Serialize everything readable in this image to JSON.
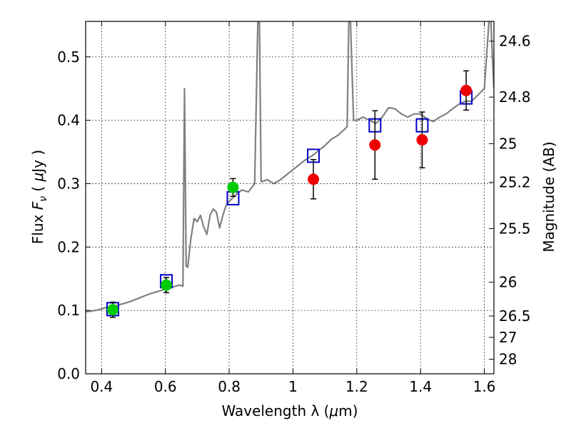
{
  "chart_data": {
    "type": "line",
    "x_axis": {
      "label_text": "Wavelength  λ (",
      "label_unit_sym": "μ",
      "label_unit": "m)",
      "range": [
        0.35,
        1.63
      ],
      "ticks": [
        0.4,
        0.6,
        0.8,
        1.0,
        1.2,
        1.4,
        1.6
      ],
      "tick_labels": [
        "0.4",
        "0.6",
        "0.8",
        "1",
        "1.2",
        "1.4",
        "1.6"
      ]
    },
    "y_axis": {
      "label_prefix": "Flux  ",
      "label_symbol": "F",
      "label_subscript": "ν",
      "label_unit_open": "  ( ",
      "label_unit_sym": "μ",
      "label_unit": "Jy )",
      "range": [
        0.0,
        0.556
      ],
      "ticks": [
        0.0,
        0.1,
        0.2,
        0.3,
        0.4,
        0.5
      ],
      "tick_labels": [
        "0.0",
        "0.1",
        "0.2",
        "0.3",
        "0.4",
        "0.5"
      ]
    },
    "y2_axis": {
      "label": "Magnitude (AB)",
      "ticks": [
        {
          "mag": 24.6,
          "label": "24.6"
        },
        {
          "mag": 24.8,
          "label": "24.8"
        },
        {
          "mag": 25.0,
          "label": "25"
        },
        {
          "mag": 25.2,
          "label": "25.2"
        },
        {
          "mag": 25.5,
          "label": "25.5"
        },
        {
          "mag": 26.0,
          "label": "26"
        },
        {
          "mag": 26.5,
          "label": "26.5"
        },
        {
          "mag": 27.0,
          "label": "27"
        },
        {
          "mag": 28.0,
          "label": "28"
        }
      ]
    },
    "grid": true,
    "series": [
      {
        "style": "line",
        "color": "#808080",
        "points": [
          [
            0.35,
            0.098
          ],
          [
            0.37,
            0.099
          ],
          [
            0.39,
            0.101
          ],
          [
            0.41,
            0.104
          ],
          [
            0.43,
            0.106
          ],
          [
            0.45,
            0.108
          ],
          [
            0.47,
            0.111
          ],
          [
            0.49,
            0.114
          ],
          [
            0.51,
            0.118
          ],
          [
            0.53,
            0.122
          ],
          [
            0.55,
            0.126
          ],
          [
            0.57,
            0.129
          ],
          [
            0.59,
            0.132
          ],
          [
            0.61,
            0.135
          ],
          [
            0.63,
            0.138
          ],
          [
            0.645,
            0.14
          ],
          [
            0.655,
            0.138
          ],
          [
            0.66,
            0.45
          ],
          [
            0.665,
            0.17
          ],
          [
            0.67,
            0.168
          ],
          [
            0.68,
            0.214
          ],
          [
            0.69,
            0.245
          ],
          [
            0.7,
            0.24
          ],
          [
            0.71,
            0.25
          ],
          [
            0.72,
            0.232
          ],
          [
            0.73,
            0.22
          ],
          [
            0.74,
            0.25
          ],
          [
            0.75,
            0.26
          ],
          [
            0.76,
            0.255
          ],
          [
            0.77,
            0.23
          ],
          [
            0.78,
            0.25
          ],
          [
            0.79,
            0.265
          ],
          [
            0.8,
            0.272
          ],
          [
            0.82,
            0.282
          ],
          [
            0.84,
            0.29
          ],
          [
            0.86,
            0.287
          ],
          [
            0.88,
            0.3
          ],
          [
            0.89,
            0.56
          ],
          [
            0.895,
            0.556
          ],
          [
            0.9,
            0.303
          ],
          [
            0.92,
            0.306
          ],
          [
            0.94,
            0.3
          ],
          [
            0.96,
            0.306
          ],
          [
            0.98,
            0.314
          ],
          [
            1.0,
            0.322
          ],
          [
            1.02,
            0.33
          ],
          [
            1.04,
            0.338
          ],
          [
            1.06,
            0.344
          ],
          [
            1.08,
            0.352
          ],
          [
            1.1,
            0.36
          ],
          [
            1.12,
            0.37
          ],
          [
            1.14,
            0.376
          ],
          [
            1.16,
            0.385
          ],
          [
            1.17,
            0.39
          ],
          [
            1.175,
            0.56
          ],
          [
            1.18,
            0.56
          ],
          [
            1.19,
            0.4
          ],
          [
            1.2,
            0.4
          ],
          [
            1.22,
            0.405
          ],
          [
            1.24,
            0.4
          ],
          [
            1.26,
            0.395
          ],
          [
            1.28,
            0.405
          ],
          [
            1.3,
            0.42
          ],
          [
            1.32,
            0.418
          ],
          [
            1.34,
            0.41
          ],
          [
            1.36,
            0.405
          ],
          [
            1.38,
            0.41
          ],
          [
            1.4,
            0.41
          ],
          [
            1.42,
            0.402
          ],
          [
            1.44,
            0.398
          ],
          [
            1.46,
            0.405
          ],
          [
            1.48,
            0.41
          ],
          [
            1.5,
            0.418
          ],
          [
            1.52,
            0.425
          ],
          [
            1.54,
            0.43
          ],
          [
            1.56,
            0.43
          ],
          [
            1.58,
            0.44
          ],
          [
            1.6,
            0.45
          ],
          [
            1.615,
            0.56
          ],
          [
            1.62,
            0.56
          ],
          [
            1.63,
            0.45
          ]
        ]
      },
      {
        "style": "open-square",
        "color": "#0000cc",
        "x": [
          0.435,
          0.603,
          0.812,
          1.064,
          1.257,
          1.405,
          1.543
        ],
        "y": [
          0.102,
          0.146,
          0.277,
          0.344,
          0.392,
          0.392,
          0.436
        ]
      },
      {
        "style": "filled-circle-errorbar",
        "color": "#00cc00",
        "x": [
          0.435,
          0.603,
          0.812
        ],
        "y": [
          0.101,
          0.14,
          0.294
        ],
        "yerr": [
          0.012,
          0.012,
          0.014
        ]
      },
      {
        "style": "filled-circle-errorbar",
        "color": "#ee0000",
        "x": [
          1.064,
          1.257,
          1.405,
          1.543
        ],
        "y": [
          0.307,
          0.361,
          0.369,
          0.447
        ],
        "yerr": [
          0.031,
          0.054,
          0.044,
          0.031
        ]
      }
    ]
  }
}
